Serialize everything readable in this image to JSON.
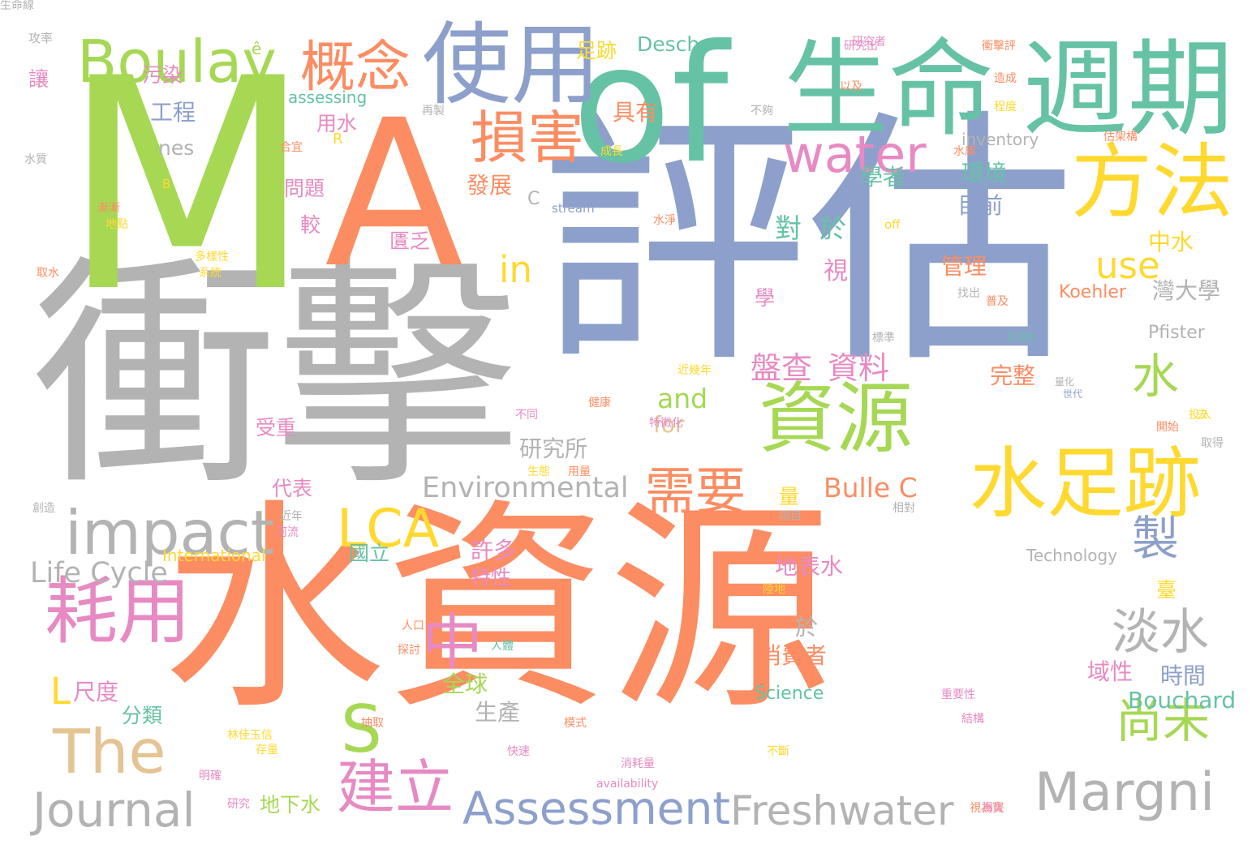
{
  "palette": {
    "orange": "#fc8d62",
    "blue": "#8da0cb",
    "teal": "#66c2a5",
    "green": "#a6d854",
    "yellow": "#ffd92f",
    "pink": "#e78ac3",
    "gray": "#b3b3b3",
    "tan": "#e5c494"
  },
  "words": [
    {
      "text": "評估",
      "color": "blue",
      "vertical": false
    },
    {
      "text": "水資源",
      "color": "orange",
      "vertical": false
    },
    {
      "text": "衝擊",
      "color": "gray",
      "vertical": false
    },
    {
      "text": "M",
      "color": "green",
      "vertical": false
    },
    {
      "text": "A",
      "color": "orange",
      "vertical": false
    },
    {
      "text": "of",
      "color": "teal",
      "vertical": false
    },
    {
      "text": "生命",
      "color": "teal",
      "vertical": false
    },
    {
      "text": "週期",
      "color": "teal",
      "vertical": false
    },
    {
      "text": "使用",
      "color": "blue",
      "vertical": false
    },
    {
      "text": "方法",
      "color": "yellow",
      "vertical": false
    },
    {
      "text": "水足跡",
      "color": "yellow",
      "vertical": false
    },
    {
      "text": "資源",
      "color": "green",
      "vertical": false
    },
    {
      "text": "耗用",
      "color": "pink",
      "vertical": false
    },
    {
      "text": "impact",
      "color": "gray",
      "vertical": false
    },
    {
      "text": "Boulay",
      "color": "green",
      "vertical": false
    },
    {
      "text": "概念",
      "color": "orange",
      "vertical": false
    },
    {
      "text": "損害",
      "color": "orange",
      "vertical": false
    },
    {
      "text": "water",
      "color": "pink",
      "vertical": false
    },
    {
      "text": "需要",
      "color": "orange",
      "vertical": false
    },
    {
      "text": "LCA",
      "color": "yellow",
      "vertical": false
    },
    {
      "text": "The",
      "color": "tan",
      "vertical": false
    },
    {
      "text": "S",
      "color": "green",
      "vertical": false
    },
    {
      "text": "中",
      "color": "pink",
      "vertical": false
    },
    {
      "text": "建立",
      "color": "pink",
      "vertical": false
    },
    {
      "text": "Journal",
      "color": "gray",
      "vertical": false
    },
    {
      "text": "Assessment",
      "color": "blue",
      "vertical": false
    },
    {
      "text": "Freshwater",
      "color": "gray",
      "vertical": false
    },
    {
      "text": "Margni",
      "color": "gray",
      "vertical": false
    },
    {
      "text": "淡水",
      "color": "gray",
      "vertical": false
    },
    {
      "text": "尚未",
      "color": "green",
      "vertical": false
    },
    {
      "text": "製",
      "color": "blue",
      "vertical": false
    },
    {
      "text": "水",
      "color": "green",
      "vertical": false
    },
    {
      "text": "use",
      "color": "yellow",
      "vertical": false
    },
    {
      "text": "in",
      "color": "yellow",
      "vertical": false
    },
    {
      "text": "Environmental",
      "color": "gray",
      "vertical": false
    },
    {
      "text": "Bulle C",
      "color": "orange",
      "vertical": false
    },
    {
      "text": "Life Cycle",
      "color": "gray",
      "vertical": false
    },
    {
      "text": "L",
      "color": "yellow",
      "vertical": false
    },
    {
      "text": "盤查",
      "color": "pink",
      "vertical": false
    },
    {
      "text": "資料",
      "color": "pink",
      "vertical": false
    },
    {
      "text": "and",
      "color": "green",
      "vertical": false
    },
    {
      "text": "for",
      "color": "tan",
      "vertical": false
    },
    {
      "text": "研究所",
      "color": "gray",
      "vertical": false
    },
    {
      "text": "對",
      "color": "teal",
      "vertical": false
    },
    {
      "text": "於",
      "color": "teal",
      "vertical": false
    },
    {
      "text": "環境",
      "color": "teal",
      "vertical": false
    },
    {
      "text": "目前",
      "color": "blue",
      "vertical": false
    },
    {
      "text": "學者",
      "color": "teal",
      "vertical": false
    },
    {
      "text": "管理",
      "color": "orange",
      "vertical": false
    },
    {
      "text": "視",
      "color": "pink",
      "vertical": false
    },
    {
      "text": "中水",
      "color": "yellow",
      "vertical": false
    },
    {
      "text": "灣大學",
      "color": "gray",
      "vertical": false
    },
    {
      "text": "Koehler",
      "color": "orange",
      "vertical": false
    },
    {
      "text": "Pfister",
      "color": "gray",
      "vertical": false
    },
    {
      "text": "完整",
      "color": "orange",
      "vertical": false
    },
    {
      "text": "時間",
      "color": "blue",
      "vertical": false
    },
    {
      "text": "域性",
      "color": "pink",
      "vertical": false
    },
    {
      "text": "Bouchard",
      "color": "teal",
      "vertical": false
    },
    {
      "text": "Science",
      "color": "teal",
      "vertical": false
    },
    {
      "text": "消費者",
      "color": "orange",
      "vertical": false
    },
    {
      "text": "地表水",
      "color": "pink",
      "vertical": false
    },
    {
      "text": "於",
      "color": "gray",
      "vertical": false
    },
    {
      "text": "全球",
      "color": "green",
      "vertical": false
    },
    {
      "text": "生產",
      "color": "gray",
      "vertical": false
    },
    {
      "text": "地下水",
      "color": "green",
      "vertical": false
    },
    {
      "text": "許多",
      "color": "pink",
      "vertical": false
    },
    {
      "text": "特性",
      "color": "pink",
      "vertical": false
    },
    {
      "text": "國立",
      "color": "teal",
      "vertical": false
    },
    {
      "text": "代表",
      "color": "pink",
      "vertical": false
    },
    {
      "text": "受重",
      "color": "pink",
      "vertical": false
    },
    {
      "text": "分類",
      "color": "teal",
      "vertical": false
    },
    {
      "text": "尺度",
      "color": "pink",
      "vertical": false
    },
    {
      "text": "匱乏",
      "color": "pink",
      "vertical": false
    },
    {
      "text": "問題",
      "color": "pink",
      "vertical": false
    },
    {
      "text": "較",
      "color": "pink",
      "vertical": false
    },
    {
      "text": "發展",
      "color": "orange",
      "vertical": false
    },
    {
      "text": "具有",
      "color": "orange",
      "vertical": false
    },
    {
      "text": "用水",
      "color": "pink",
      "vertical": false
    },
    {
      "text": "足跡",
      "color": "yellow",
      "vertical": false
    },
    {
      "text": "Desch",
      "color": "teal",
      "vertical": false
    },
    {
      "text": "工程",
      "color": "blue",
      "vertical": false
    },
    {
      "text": "污染",
      "color": "pink",
      "vertical": false
    },
    {
      "text": "nes",
      "color": "gray",
      "vertical": false
    },
    {
      "text": "assessing",
      "color": "teal",
      "vertical": false
    },
    {
      "text": "讓",
      "color": "pink",
      "vertical": false
    },
    {
      "text": "International",
      "color": "yellow",
      "vertical": false
    },
    {
      "text": "Technology",
      "color": "gray",
      "vertical": false
    },
    {
      "text": "inventory",
      "color": "gray",
      "vertical": false
    },
    {
      "text": "stream",
      "color": "blue",
      "vertical": false
    },
    {
      "text": "availability",
      "color": "pink",
      "vertical": false
    },
    {
      "text": "量",
      "color": "yellow",
      "vertical": false
    },
    {
      "text": "臺",
      "color": "yellow",
      "vertical": false
    },
    {
      "text": "學",
      "color": "pink",
      "vertical": false
    },
    {
      "text": "ê",
      "color": "green",
      "vertical": false
    },
    {
      "text": "C",
      "color": "gray",
      "vertical": false
    },
    {
      "text": "R",
      "color": "yellow",
      "vertical": false
    },
    {
      "text": "B",
      "color": "yellow",
      "vertical": false
    },
    {
      "text": "off",
      "color": "yellow",
      "vertical": false
    },
    {
      "text": "攻率",
      "color": "gray",
      "vertical": false
    },
    {
      "text": "研究者",
      "color": "pink",
      "vertical": false
    },
    {
      "text": "衝擊評",
      "color": "orange",
      "vertical": false
    },
    {
      "text": "造成",
      "color": "orange",
      "vertical": false
    },
    {
      "text": "程度",
      "color": "yellow",
      "vertical": false
    },
    {
      "text": "估架構",
      "color": "orange",
      "vertical": false
    },
    {
      "text": "水庫",
      "color": "orange",
      "vertical": false
    },
    {
      "text": "可用性",
      "color": "teal",
      "vertical": false
    },
    {
      "text": "世代",
      "color": "blue",
      "vertical": false
    },
    {
      "text": "投入",
      "color": "yellow",
      "vertical": false
    },
    {
      "text": "取得",
      "color": "gray",
      "vertical": false
    },
    {
      "text": "健康",
      "color": "orange",
      "vertical": false
    },
    {
      "text": "不同",
      "color": "pink",
      "vertical": false
    },
    {
      "text": "生態",
      "color": "yellow",
      "vertical": false
    },
    {
      "text": "用量",
      "color": "orange",
      "vertical": false
    },
    {
      "text": "特徵化",
      "color": "pink",
      "vertical": false
    },
    {
      "text": "近幾年",
      "color": "yellow",
      "vertical": false
    },
    {
      "text": "水淨",
      "color": "orange",
      "vertical": false
    },
    {
      "text": "人體",
      "color": "teal",
      "vertical": false
    },
    {
      "text": "人口",
      "color": "orange",
      "vertical": false
    },
    {
      "text": "河流",
      "color": "pink",
      "vertical": false
    },
    {
      "text": "近年",
      "color": "gray",
      "vertical": false
    },
    {
      "text": "存量",
      "color": "yellow",
      "vertical": false
    },
    {
      "text": "明確",
      "color": "pink",
      "vertical": false
    },
    {
      "text": "消耗量",
      "color": "pink",
      "vertical": false
    },
    {
      "text": "視為寶",
      "color": "orange",
      "vertical": false
    },
    {
      "text": "重要性",
      "color": "pink",
      "vertical": false
    },
    {
      "text": "項目",
      "color": "gray",
      "vertical": false
    },
    {
      "text": "相對",
      "color": "gray",
      "vertical": false
    },
    {
      "text": "標準",
      "color": "gray",
      "vertical": false
    },
    {
      "text": "系統",
      "color": "yellow",
      "vertical": false
    },
    {
      "text": "取水",
      "color": "orange",
      "vertical": false
    },
    {
      "text": "水質",
      "color": "gray",
      "vertical": false
    },
    {
      "text": "合宜",
      "color": "orange",
      "vertical": false
    },
    {
      "text": "成長",
      "color": "yellow",
      "vertical": false
    },
    {
      "text": "不夠",
      "color": "gray",
      "vertical": false
    },
    {
      "text": "以及",
      "color": "orange",
      "vertical": false
    },
    {
      "text": "量化",
      "color": "gray",
      "vertical": false
    },
    {
      "text": "開始",
      "color": "orange",
      "vertical": false
    },
    {
      "text": "模式",
      "color": "orange",
      "vertical": false
    },
    {
      "text": "快速",
      "color": "pink",
      "vertical": false
    },
    {
      "text": "不斷",
      "color": "yellow",
      "vertical": false
    },
    {
      "text": "結構",
      "color": "pink",
      "vertical": false
    },
    {
      "text": "漸漸",
      "color": "orange",
      "vertical": false
    },
    {
      "text": "地點",
      "color": "yellow",
      "vertical": false
    },
    {
      "text": "多樣性",
      "color": "yellow",
      "vertical": false
    },
    {
      "text": "創造",
      "color": "gray",
      "vertical": false
    },
    {
      "text": "研究",
      "color": "pink",
      "vertical": false
    },
    {
      "text": "林佳玉信",
      "color": "yellow",
      "vertical": false
    },
    {
      "text": "探討",
      "color": "orange",
      "vertical": false
    },
    {
      "text": "找出",
      "color": "gray",
      "vertical": false
    },
    {
      "text": "普及",
      "color": "orange",
      "vertical": false
    },
    {
      "text": "去",
      "color": "yellow",
      "vertical": false
    },
    {
      "text": "陸地",
      "color": "yellow",
      "vertical": false
    },
    {
      "text": "抽取",
      "color": "orange",
      "vertical": false
    },
    {
      "text": "損失",
      "color": "pink",
      "vertical": false
    },
    {
      "text": "研究出",
      "color": "pink",
      "vertical": false
    },
    {
      "text": "再製",
      "color": "gray",
      "vertical": false
    },
    {
      "text": "生命線",
      "color": "gray",
      "vertical": false
    }
  ]
}
